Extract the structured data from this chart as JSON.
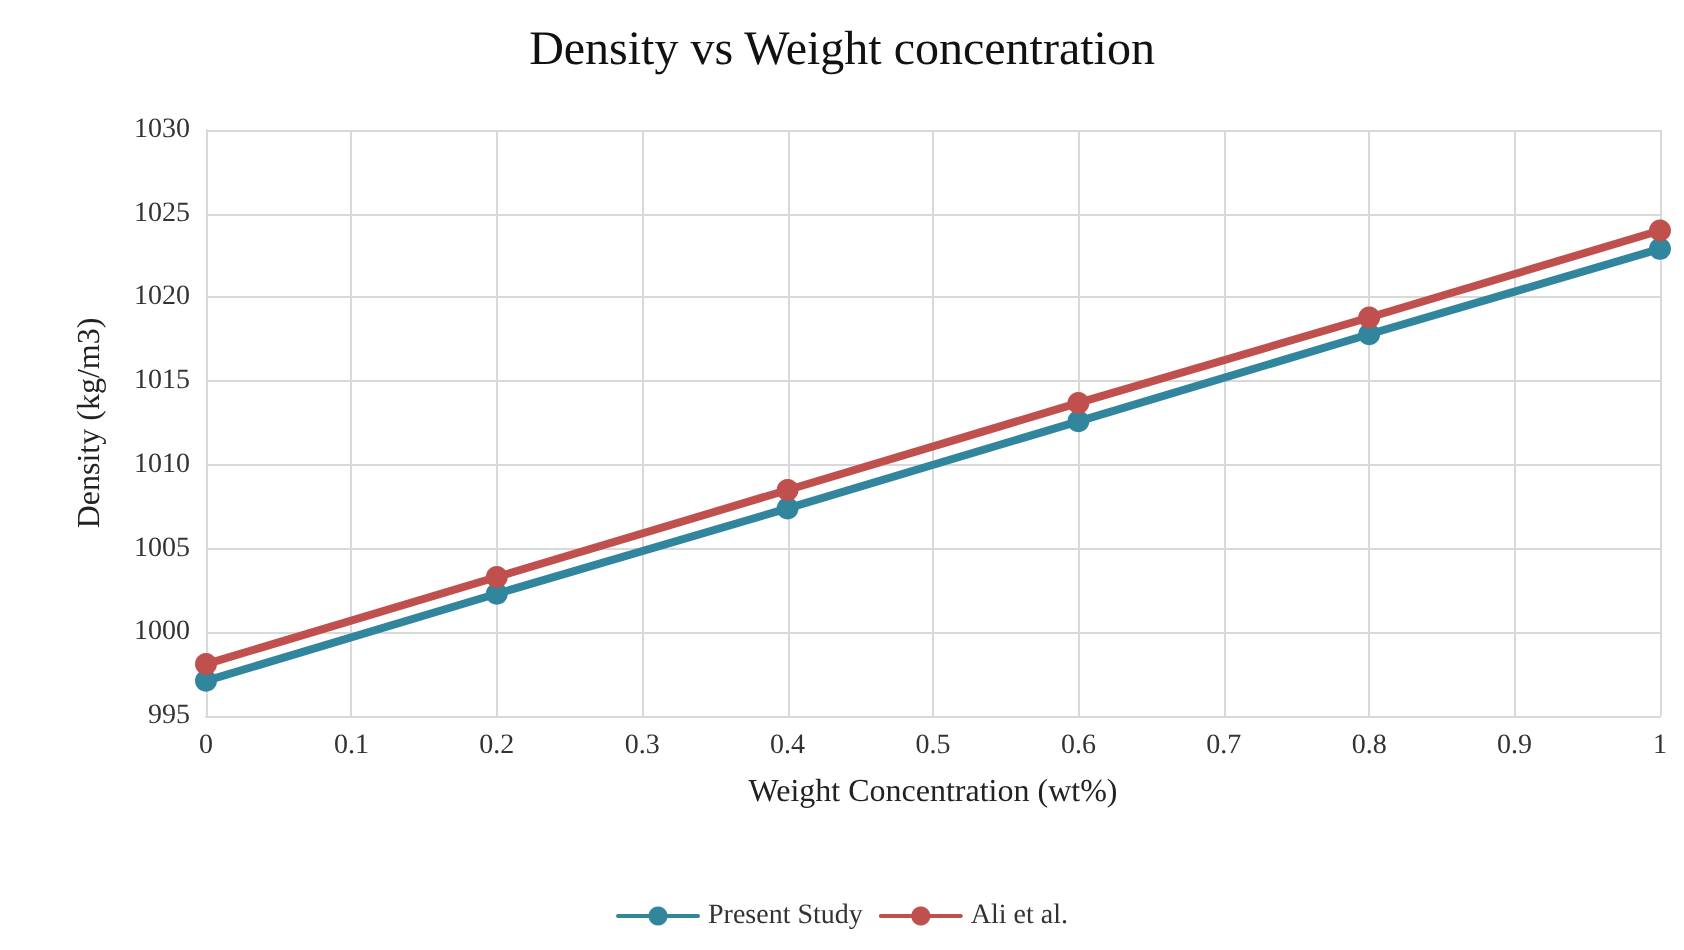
{
  "chart_data": {
    "type": "line",
    "title": "Density vs Weight concentration",
    "xlabel": "Weight Concentration (wt%)",
    "ylabel": "Density (kg/m3)",
    "x": [
      0,
      0.2,
      0.4,
      0.6,
      0.8,
      1
    ],
    "series": [
      {
        "name": "Present Study",
        "color": "#31859c",
        "values": [
          997.1,
          1002.3,
          1007.4,
          1012.6,
          1017.8,
          1022.9
        ]
      },
      {
        "name": "Ali et al.",
        "color": "#c0504d",
        "values": [
          998.1,
          1003.3,
          1008.5,
          1013.7,
          1018.8,
          1024.0
        ]
      }
    ],
    "xlim": [
      0,
      1
    ],
    "xticks": [
      0,
      0.1,
      0.2,
      0.3,
      0.4,
      0.5,
      0.6,
      0.7,
      0.8,
      0.9,
      1
    ],
    "ylim": [
      995,
      1030
    ],
    "yticks": [
      995,
      1000,
      1005,
      1010,
      1015,
      1020,
      1025,
      1030
    ],
    "grid": true,
    "legend": "bottom",
    "marker": "circle",
    "line_style": "solid"
  }
}
